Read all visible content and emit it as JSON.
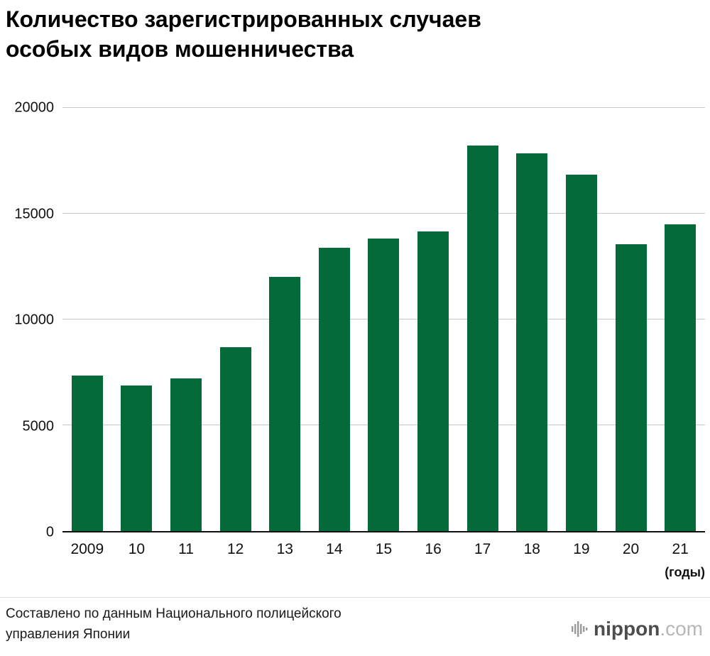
{
  "chart_data": {
    "type": "bar",
    "title": "Количество зарегистрированных случаев особых видов мошенничества",
    "title_lines": [
      "Количество зарегистрированных случаев",
      "особых видов мошенничества"
    ],
    "categories": [
      "2009",
      "10",
      "11",
      "12",
      "13",
      "14",
      "15",
      "16",
      "17",
      "18",
      "19",
      "20",
      "21"
    ],
    "values": [
      7340,
      6888,
      7216,
      8693,
      11998,
      13392,
      13828,
      14154,
      18212,
      17844,
      16851,
      13550,
      14498
    ],
    "xlabel": "(годы)",
    "ylabel": "",
    "ylim": [
      0,
      20000
    ],
    "yticks": [
      0,
      5000,
      10000,
      15000,
      20000
    ],
    "bar_color": "#056a3a",
    "grid": true,
    "legend": false
  },
  "footer": {
    "source_lines": [
      "Составлено по данным Национального полицейского",
      "управления Японии"
    ],
    "logo": {
      "icon": "soundwave-bars-icon",
      "name": "nippon",
      "suffix": ".com"
    }
  }
}
